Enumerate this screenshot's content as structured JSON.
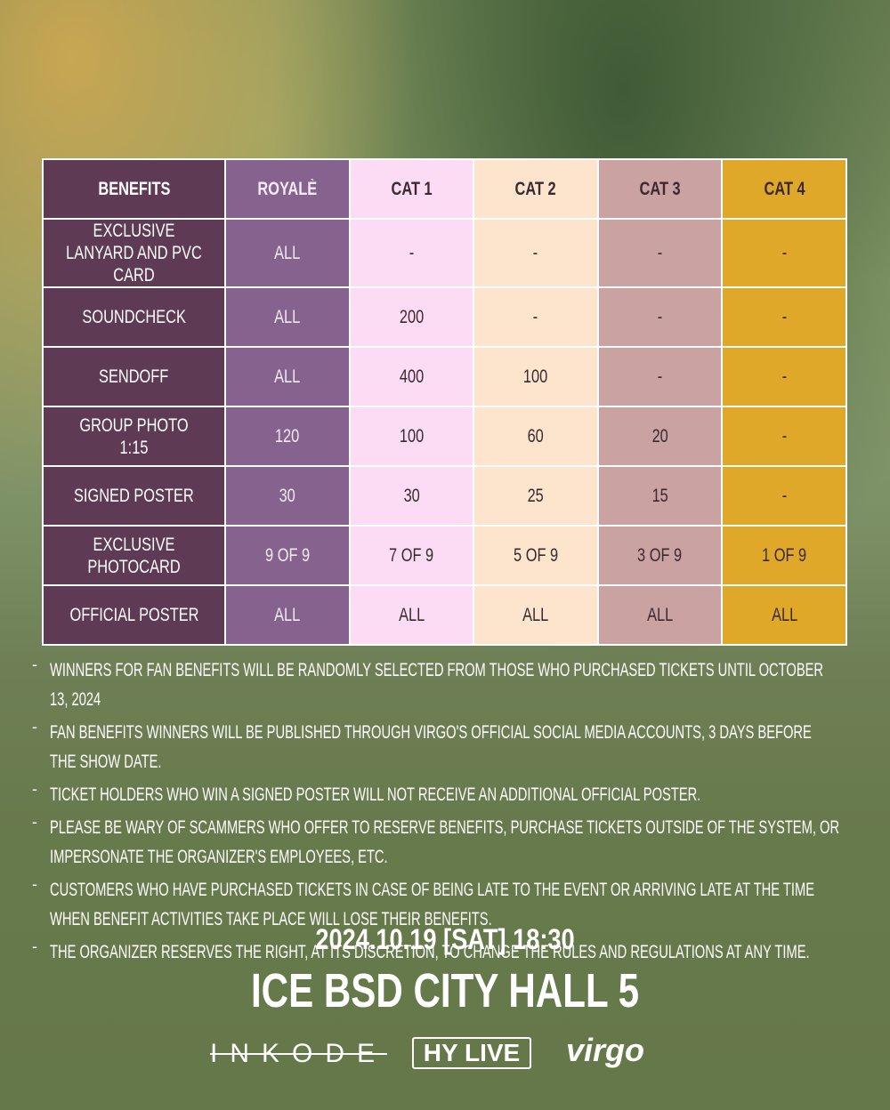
{
  "table": {
    "header": [
      "BENEFITS",
      "ROYALÈ",
      "CAT 1",
      "CAT 2",
      "CAT 3",
      "CAT 4"
    ],
    "rows": [
      [
        "EXCLUSIVE LANYARD AND PVC CARD",
        "ALL",
        "-",
        "-",
        "-",
        "-"
      ],
      [
        "SOUNDCHECK",
        "ALL",
        "200",
        "-",
        "-",
        "-"
      ],
      [
        "SENDOFF",
        "ALL",
        "400",
        "100",
        "-",
        "-"
      ],
      [
        "GROUP PHOTO 1:15",
        "120",
        "100",
        "60",
        "20",
        "-"
      ],
      [
        "SIGNED POSTER",
        "30",
        "30",
        "25",
        "15",
        "-"
      ],
      [
        "EXCLUSIVE PHOTOCARD",
        "9 OF 9",
        "7 OF 9",
        "5 OF 9",
        "3 OF 9",
        "1 OF 9"
      ],
      [
        "OFFICIAL POSTER",
        "ALL",
        "ALL",
        "ALL",
        "ALL",
        "ALL"
      ]
    ]
  },
  "notes": [
    "WINNERS FOR FAN BENEFITS WILL BE RANDOMLY SELECTED FROM THOSE WHO PURCHASED TICKETS UNTIL OCTOBER 13, 2024",
    "FAN BENEFITS WINNERS WILL BE PUBLISHED THROUGH VIRGO'S OFFICIAL SOCIAL MEDIA ACCOUNTS, 3 DAYS BEFORE THE SHOW DATE.",
    "TICKET HOLDERS WHO WIN A SIGNED POSTER WILL NOT RECEIVE AN ADDITIONAL OFFICIAL POSTER.",
    "PLEASE BE WARY OF SCAMMERS WHO OFFER TO RESERVE BENEFITS, PURCHASE TICKETS OUTSIDE OF THE SYSTEM, OR IMPERSONATE THE ORGANIZER'S EMPLOYEES, ETC.",
    "CUSTOMERS WHO HAVE PURCHASED TICKETS IN CASE OF BEING LATE TO THE EVENT OR ARRIVING LATE AT THE TIME WHEN BENEFIT ACTIVITIES TAKE PLACE WILL LOSE THEIR BENEFITS.",
    "THE ORGANIZER RESERVES THE RIGHT, AT ITS DISCRETION, TO CHANGE THE RULES AND REGULATIONS AT ANY TIME."
  ],
  "event": {
    "datetime": "2024.10.19 [SAT] 18:30",
    "venue": "ICE BSD CITY HALL 5"
  },
  "logos": [
    "INKODE",
    "HY LIVE",
    "virgo"
  ]
}
